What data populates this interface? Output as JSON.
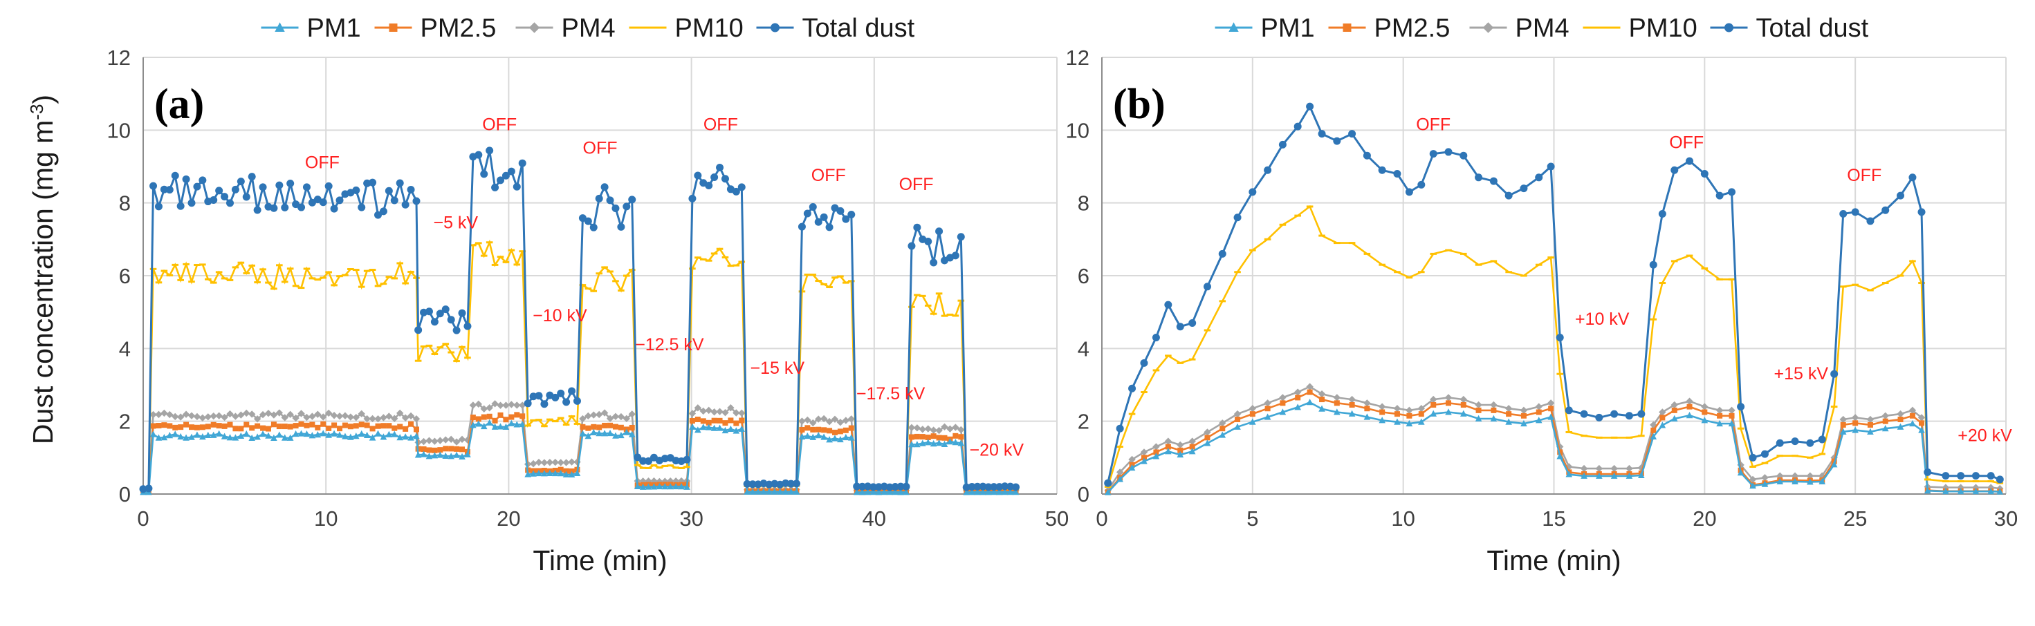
{
  "figure": {
    "ylabel": "Dust concentration (mg m",
    "ylabel_sup": "-3",
    "ylabel_close": ")"
  },
  "colors": {
    "PM1": "#41a7d6",
    "PM2.5": "#f07c28",
    "PM4": "#a5a5a5",
    "PM10": "#ffc000",
    "Total dust": "#2e75b6",
    "annotation": "#ff2020"
  },
  "chart_data": [
    {
      "type": "line",
      "panel_label": "(a)",
      "xlabel": "Time (min)",
      "xlim": [
        0,
        50
      ],
      "ylim": [
        0,
        12
      ],
      "xticks": [
        0,
        10,
        20,
        30,
        40,
        50
      ],
      "yticks": [
        0,
        2,
        4,
        6,
        8,
        10,
        12
      ],
      "grid": true,
      "legend": [
        "PM1",
        "PM2.5",
        "PM4",
        "PM10",
        "Total dust"
      ],
      "annotations": [
        {
          "text": "OFF",
          "x": 9.8,
          "y": 8.95
        },
        {
          "text": "OFF",
          "x": 19.5,
          "y": 10.0
        },
        {
          "text": "OFF",
          "x": 25.0,
          "y": 9.35
        },
        {
          "text": "OFF",
          "x": 31.6,
          "y": 10.0
        },
        {
          "text": "OFF",
          "x": 37.5,
          "y": 8.6
        },
        {
          "text": "OFF",
          "x": 42.3,
          "y": 8.35
        },
        {
          "text": "−5 kV",
          "x": 17.1,
          "y": 7.3
        },
        {
          "text": "−10 kV",
          "x": 22.8,
          "y": 4.75
        },
        {
          "text": "−12.5 kV",
          "x": 28.8,
          "y": 3.95
        },
        {
          "text": "−15 kV",
          "x": 34.7,
          "y": 3.3
        },
        {
          "text": "−17.5 kV",
          "x": 40.9,
          "y": 2.6
        },
        {
          "text": "−20 kV",
          "x": 46.7,
          "y": 1.05
        }
      ],
      "segments": [
        {
          "start": 0,
          "end": 0.5,
          "state": "baseline",
          "total": 0.15,
          "pm10": 0.15,
          "pm4": 0.12,
          "pm25": 0.1,
          "pm1": 0.05
        },
        {
          "start": 0.5,
          "end": 15.0,
          "state": "OFF",
          "total": 8.2,
          "pm10": 6.0,
          "pm4": 2.15,
          "pm25": 1.85,
          "pm1": 1.6
        },
        {
          "start": 15.0,
          "end": 18.0,
          "state": "−5 kV",
          "total": 4.8,
          "pm10": 3.9,
          "pm4": 1.45,
          "pm25": 1.2,
          "pm1": 1.05
        },
        {
          "start": 18.0,
          "end": 21.0,
          "state": "OFF",
          "total": 8.9,
          "pm10": 6.6,
          "pm4": 2.4,
          "pm25": 2.1,
          "pm1": 1.9
        },
        {
          "start": 21.0,
          "end": 24.0,
          "state": "−10 kV",
          "total": 2.65,
          "pm10": 2.0,
          "pm4": 0.85,
          "pm25": 0.65,
          "pm1": 0.55
        },
        {
          "start": 24.0,
          "end": 27.0,
          "state": "OFF",
          "total": 7.9,
          "pm10": 5.9,
          "pm4": 2.15,
          "pm25": 1.85,
          "pm1": 1.65
        },
        {
          "start": 27.0,
          "end": 30.0,
          "state": "−12.5 kV",
          "total": 0.95,
          "pm10": 0.75,
          "pm4": 0.35,
          "pm25": 0.25,
          "pm1": 0.2
        },
        {
          "start": 30.0,
          "end": 33.0,
          "state": "OFF",
          "total": 8.5,
          "pm10": 6.4,
          "pm4": 2.3,
          "pm25": 2.0,
          "pm1": 1.8
        },
        {
          "start": 33.0,
          "end": 36.0,
          "state": "−15 kV",
          "total": 0.28,
          "pm10": 0.22,
          "pm4": 0.12,
          "pm25": 0.08,
          "pm1": 0.06
        },
        {
          "start": 36.0,
          "end": 39.0,
          "state": "OFF",
          "total": 7.7,
          "pm10": 5.9,
          "pm4": 2.0,
          "pm25": 1.75,
          "pm1": 1.55
        },
        {
          "start": 39.0,
          "end": 42.0,
          "state": "−17.5 kV",
          "total": 0.2,
          "pm10": 0.17,
          "pm4": 0.1,
          "pm25": 0.07,
          "pm1": 0.05
        },
        {
          "start": 42.0,
          "end": 45.0,
          "state": "OFF",
          "total": 6.8,
          "pm10": 5.2,
          "pm4": 1.8,
          "pm25": 1.55,
          "pm1": 1.4
        },
        {
          "start": 45.0,
          "end": 48.0,
          "state": "−20 kV",
          "total": 0.2,
          "pm10": 0.15,
          "pm4": 0.1,
          "pm25": 0.07,
          "pm1": 0.05
        }
      ]
    },
    {
      "type": "line",
      "panel_label": "(b)",
      "xlabel": "Time (min)",
      "xlim": [
        0,
        30
      ],
      "ylim": [
        0,
        12
      ],
      "xticks": [
        0,
        5,
        10,
        15,
        20,
        25,
        30
      ],
      "yticks": [
        0,
        2,
        4,
        6,
        8,
        10,
        12
      ],
      "grid": true,
      "legend": [
        "PM1",
        "PM2.5",
        "PM4",
        "PM10",
        "Total dust"
      ],
      "annotations": [
        {
          "text": "OFF",
          "x": 11.0,
          "y": 10.0
        },
        {
          "text": "OFF",
          "x": 19.4,
          "y": 9.5
        },
        {
          "text": "OFF",
          "x": 25.3,
          "y": 8.6
        },
        {
          "text": "+10 kV",
          "x": 16.6,
          "y": 4.65
        },
        {
          "text": "+15 kV",
          "x": 23.2,
          "y": 3.15
        },
        {
          "text": "+20 kV",
          "x": 29.3,
          "y": 1.45
        }
      ],
      "total_dust_points": [
        [
          0.2,
          0.3
        ],
        [
          0.6,
          1.8
        ],
        [
          1.0,
          2.9
        ],
        [
          1.4,
          3.6
        ],
        [
          1.8,
          4.3
        ],
        [
          2.2,
          5.2
        ],
        [
          2.6,
          4.6
        ],
        [
          3.0,
          4.7
        ],
        [
          3.5,
          5.7
        ],
        [
          4.0,
          6.6
        ],
        [
          4.5,
          7.6
        ],
        [
          5.0,
          8.3
        ],
        [
          5.5,
          8.9
        ],
        [
          6.0,
          9.6
        ],
        [
          6.5,
          10.1
        ],
        [
          6.9,
          10.65
        ],
        [
          7.3,
          9.9
        ],
        [
          7.8,
          9.7
        ],
        [
          8.3,
          9.9
        ],
        [
          8.8,
          9.3
        ],
        [
          9.3,
          8.9
        ],
        [
          9.8,
          8.8
        ],
        [
          10.2,
          8.3
        ],
        [
          10.6,
          8.5
        ],
        [
          11.0,
          9.35
        ],
        [
          11.5,
          9.4
        ],
        [
          12.0,
          9.3
        ],
        [
          12.5,
          8.7
        ],
        [
          13.0,
          8.6
        ],
        [
          13.5,
          8.2
        ],
        [
          14.0,
          8.4
        ],
        [
          14.5,
          8.7
        ],
        [
          14.9,
          9.0
        ],
        [
          15.2,
          4.3
        ],
        [
          15.5,
          2.3
        ],
        [
          16.0,
          2.2
        ],
        [
          16.5,
          2.1
        ],
        [
          17.0,
          2.2
        ],
        [
          17.5,
          2.15
        ],
        [
          17.9,
          2.2
        ],
        [
          18.3,
          6.3
        ],
        [
          18.6,
          7.7
        ],
        [
          19.0,
          8.9
        ],
        [
          19.5,
          9.15
        ],
        [
          20.0,
          8.8
        ],
        [
          20.5,
          8.2
        ],
        [
          20.9,
          8.3
        ],
        [
          21.2,
          2.4
        ],
        [
          21.6,
          1.0
        ],
        [
          22.0,
          1.1
        ],
        [
          22.5,
          1.4
        ],
        [
          23.0,
          1.45
        ],
        [
          23.5,
          1.4
        ],
        [
          23.9,
          1.5
        ],
        [
          24.3,
          3.3
        ],
        [
          24.6,
          7.7
        ],
        [
          25.0,
          7.75
        ],
        [
          25.5,
          7.5
        ],
        [
          26.0,
          7.8
        ],
        [
          26.5,
          8.2
        ],
        [
          26.9,
          8.7
        ],
        [
          27.2,
          7.75
        ],
        [
          27.4,
          0.6
        ],
        [
          28.0,
          0.5
        ],
        [
          28.5,
          0.5
        ],
        [
          29.0,
          0.5
        ],
        [
          29.5,
          0.5
        ],
        [
          29.8,
          0.4
        ]
      ],
      "pm10_points": [
        [
          0.2,
          0.2
        ],
        [
          0.6,
          1.3
        ],
        [
          1.0,
          2.2
        ],
        [
          1.4,
          2.8
        ],
        [
          1.8,
          3.4
        ],
        [
          2.2,
          3.8
        ],
        [
          2.6,
          3.6
        ],
        [
          3.0,
          3.7
        ],
        [
          3.5,
          4.5
        ],
        [
          4.0,
          5.3
        ],
        [
          4.5,
          6.1
        ],
        [
          5.0,
          6.7
        ],
        [
          5.5,
          7.0
        ],
        [
          6.0,
          7.4
        ],
        [
          6.5,
          7.65
        ],
        [
          6.9,
          7.9
        ],
        [
          7.3,
          7.1
        ],
        [
          7.8,
          6.9
        ],
        [
          8.3,
          6.9
        ],
        [
          8.8,
          6.6
        ],
        [
          9.3,
          6.3
        ],
        [
          9.8,
          6.1
        ],
        [
          10.2,
          5.95
        ],
        [
          10.6,
          6.1
        ],
        [
          11.0,
          6.6
        ],
        [
          11.5,
          6.7
        ],
        [
          12.0,
          6.6
        ],
        [
          12.5,
          6.3
        ],
        [
          13.0,
          6.4
        ],
        [
          13.5,
          6.1
        ],
        [
          14.0,
          6.0
        ],
        [
          14.5,
          6.3
        ],
        [
          14.9,
          6.5
        ],
        [
          15.2,
          3.3
        ],
        [
          15.5,
          1.7
        ],
        [
          16.0,
          1.6
        ],
        [
          16.5,
          1.55
        ],
        [
          17.0,
          1.55
        ],
        [
          17.5,
          1.55
        ],
        [
          17.9,
          1.6
        ],
        [
          18.3,
          4.8
        ],
        [
          18.6,
          5.8
        ],
        [
          19.0,
          6.4
        ],
        [
          19.5,
          6.55
        ],
        [
          20.0,
          6.2
        ],
        [
          20.5,
          5.9
        ],
        [
          20.9,
          5.9
        ],
        [
          21.2,
          1.8
        ],
        [
          21.6,
          0.75
        ],
        [
          22.0,
          0.85
        ],
        [
          22.5,
          1.05
        ],
        [
          23.0,
          1.05
        ],
        [
          23.5,
          1.0
        ],
        [
          23.9,
          1.1
        ],
        [
          24.3,
          2.4
        ],
        [
          24.6,
          5.7
        ],
        [
          25.0,
          5.75
        ],
        [
          25.5,
          5.6
        ],
        [
          26.0,
          5.8
        ],
        [
          26.5,
          6.0
        ],
        [
          26.9,
          6.4
        ],
        [
          27.2,
          5.8
        ],
        [
          27.4,
          0.4
        ],
        [
          28.0,
          0.35
        ],
        [
          28.5,
          0.35
        ],
        [
          29.0,
          0.35
        ],
        [
          29.5,
          0.35
        ],
        [
          29.8,
          0.3
        ]
      ],
      "pm4_points": [
        [
          0.2,
          0.1
        ],
        [
          0.6,
          0.6
        ],
        [
          1.0,
          0.95
        ],
        [
          1.4,
          1.15
        ],
        [
          1.8,
          1.3
        ],
        [
          2.2,
          1.45
        ],
        [
          2.6,
          1.35
        ],
        [
          3.0,
          1.45
        ],
        [
          3.5,
          1.7
        ],
        [
          4.0,
          1.95
        ],
        [
          4.5,
          2.2
        ],
        [
          5.0,
          2.35
        ],
        [
          5.5,
          2.5
        ],
        [
          6.0,
          2.65
        ],
        [
          6.5,
          2.8
        ],
        [
          6.9,
          2.95
        ],
        [
          7.3,
          2.75
        ],
        [
          7.8,
          2.65
        ],
        [
          8.3,
          2.6
        ],
        [
          8.8,
          2.5
        ],
        [
          9.3,
          2.4
        ],
        [
          9.8,
          2.35
        ],
        [
          10.2,
          2.3
        ],
        [
          10.6,
          2.35
        ],
        [
          11.0,
          2.6
        ],
        [
          11.5,
          2.65
        ],
        [
          12.0,
          2.6
        ],
        [
          12.5,
          2.45
        ],
        [
          13.0,
          2.45
        ],
        [
          13.5,
          2.35
        ],
        [
          14.0,
          2.3
        ],
        [
          14.5,
          2.4
        ],
        [
          14.9,
          2.5
        ],
        [
          15.2,
          1.3
        ],
        [
          15.5,
          0.75
        ],
        [
          16.0,
          0.7
        ],
        [
          16.5,
          0.7
        ],
        [
          17.0,
          0.7
        ],
        [
          17.5,
          0.7
        ],
        [
          17.9,
          0.72
        ],
        [
          18.3,
          1.9
        ],
        [
          18.6,
          2.25
        ],
        [
          19.0,
          2.45
        ],
        [
          19.5,
          2.55
        ],
        [
          20.0,
          2.4
        ],
        [
          20.5,
          2.3
        ],
        [
          20.9,
          2.3
        ],
        [
          21.2,
          0.8
        ],
        [
          21.6,
          0.4
        ],
        [
          22.0,
          0.45
        ],
        [
          22.5,
          0.5
        ],
        [
          23.0,
          0.5
        ],
        [
          23.5,
          0.5
        ],
        [
          23.9,
          0.5
        ],
        [
          24.3,
          1.0
        ],
        [
          24.6,
          2.05
        ],
        [
          25.0,
          2.1
        ],
        [
          25.5,
          2.05
        ],
        [
          26.0,
          2.15
        ],
        [
          26.5,
          2.2
        ],
        [
          26.9,
          2.3
        ],
        [
          27.2,
          2.1
        ],
        [
          27.4,
          0.2
        ],
        [
          28.0,
          0.18
        ],
        [
          28.5,
          0.18
        ],
        [
          29.0,
          0.18
        ],
        [
          29.5,
          0.18
        ],
        [
          29.8,
          0.15
        ]
      ],
      "pm25_points": [
        [
          0.2,
          0.05
        ],
        [
          0.6,
          0.45
        ],
        [
          1.0,
          0.8
        ],
        [
          1.4,
          1.0
        ],
        [
          1.8,
          1.15
        ],
        [
          2.2,
          1.3
        ],
        [
          2.6,
          1.2
        ],
        [
          3.0,
          1.3
        ],
        [
          3.5,
          1.55
        ],
        [
          4.0,
          1.8
        ],
        [
          4.5,
          2.05
        ],
        [
          5.0,
          2.2
        ],
        [
          5.5,
          2.35
        ],
        [
          6.0,
          2.5
        ],
        [
          6.5,
          2.65
        ],
        [
          6.9,
          2.8
        ],
        [
          7.3,
          2.6
        ],
        [
          7.8,
          2.5
        ],
        [
          8.3,
          2.45
        ],
        [
          8.8,
          2.35
        ],
        [
          9.3,
          2.25
        ],
        [
          9.8,
          2.2
        ],
        [
          10.2,
          2.15
        ],
        [
          10.6,
          2.2
        ],
        [
          11.0,
          2.45
        ],
        [
          11.5,
          2.5
        ],
        [
          12.0,
          2.45
        ],
        [
          12.5,
          2.3
        ],
        [
          13.0,
          2.3
        ],
        [
          13.5,
          2.2
        ],
        [
          14.0,
          2.15
        ],
        [
          14.5,
          2.25
        ],
        [
          14.9,
          2.35
        ],
        [
          15.2,
          1.15
        ],
        [
          15.5,
          0.6
        ],
        [
          16.0,
          0.55
        ],
        [
          16.5,
          0.55
        ],
        [
          17.0,
          0.55
        ],
        [
          17.5,
          0.55
        ],
        [
          17.9,
          0.57
        ],
        [
          18.3,
          1.75
        ],
        [
          18.6,
          2.1
        ],
        [
          19.0,
          2.3
        ],
        [
          19.5,
          2.4
        ],
        [
          20.0,
          2.25
        ],
        [
          20.5,
          2.15
        ],
        [
          20.9,
          2.15
        ],
        [
          21.2,
          0.65
        ],
        [
          21.6,
          0.25
        ],
        [
          22.0,
          0.3
        ],
        [
          22.5,
          0.38
        ],
        [
          23.0,
          0.38
        ],
        [
          23.5,
          0.37
        ],
        [
          23.9,
          0.38
        ],
        [
          24.3,
          0.9
        ],
        [
          24.6,
          1.9
        ],
        [
          25.0,
          1.95
        ],
        [
          25.5,
          1.9
        ],
        [
          26.0,
          2.0
        ],
        [
          26.5,
          2.05
        ],
        [
          26.9,
          2.15
        ],
        [
          27.2,
          1.95
        ],
        [
          27.4,
          0.1
        ],
        [
          28.0,
          0.08
        ],
        [
          28.5,
          0.08
        ],
        [
          29.0,
          0.08
        ],
        [
          29.5,
          0.08
        ],
        [
          29.8,
          0.07
        ]
      ]
    }
  ]
}
